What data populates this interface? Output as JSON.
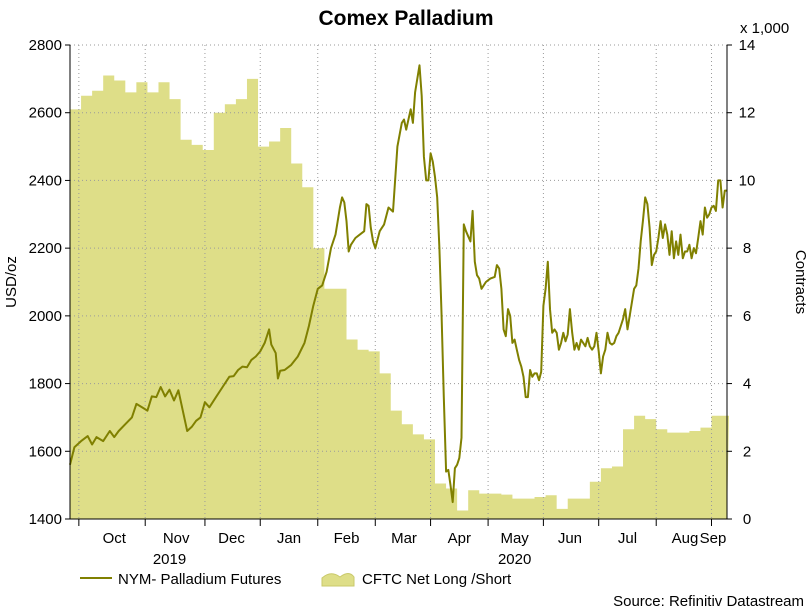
{
  "chart_data": {
    "type": "line",
    "title": "Comex Palladium",
    "ylabel_left": "USD/oz",
    "ylabel_right": "Contracts",
    "right_multiplier": "x 1,000",
    "ylim_left": [
      1400,
      2800
    ],
    "ylim_right": [
      0,
      14
    ],
    "yticks_left": [
      "1400",
      "1600",
      "1800",
      "2000",
      "2200",
      "2400",
      "2600",
      "2800"
    ],
    "yticks_right": [
      "0",
      "2",
      "4",
      "6",
      "8",
      "10",
      "12",
      "14"
    ],
    "month_labels": [
      "Oct",
      "Nov",
      "Dec",
      "Jan",
      "Feb",
      "Mar",
      "Apr",
      "May",
      "Jun",
      "Jul",
      "Aug",
      "Sep"
    ],
    "year_labels": [
      "2019",
      "2020"
    ],
    "grid": true,
    "source": "Source: Refinitiv Datastream",
    "series": [
      {
        "name": "NYM- Palladium Futures",
        "axis": "left",
        "style": "line",
        "color": "#808000",
        "points": [
          [
            0,
            1560
          ],
          [
            2,
            1612
          ],
          [
            5,
            1630
          ],
          [
            8,
            1645
          ],
          [
            10,
            1620
          ],
          [
            12,
            1642
          ],
          [
            15,
            1630
          ],
          [
            18,
            1660
          ],
          [
            20,
            1642
          ],
          [
            22,
            1660
          ],
          [
            25,
            1680
          ],
          [
            28,
            1700
          ],
          [
            30,
            1740
          ],
          [
            33,
            1728
          ],
          [
            35,
            1720
          ],
          [
            37,
            1762
          ],
          [
            39,
            1760
          ],
          [
            41,
            1790
          ],
          [
            43,
            1762
          ],
          [
            45,
            1782
          ],
          [
            47,
            1750
          ],
          [
            49,
            1780
          ],
          [
            51,
            1720
          ],
          [
            53,
            1660
          ],
          [
            55,
            1672
          ],
          [
            57,
            1690
          ],
          [
            59,
            1700
          ],
          [
            61,
            1745
          ],
          [
            63,
            1730
          ],
          [
            66,
            1760
          ],
          [
            69,
            1790
          ],
          [
            72,
            1820
          ],
          [
            74,
            1822
          ],
          [
            76,
            1840
          ],
          [
            78,
            1850
          ],
          [
            80,
            1848
          ],
          [
            82,
            1870
          ],
          [
            84,
            1880
          ],
          [
            86,
            1895
          ],
          [
            88,
            1920
          ],
          [
            90,
            1960
          ],
          [
            91,
            1915
          ],
          [
            93,
            1890
          ],
          [
            94,
            1815
          ],
          [
            95,
            1838
          ],
          [
            97,
            1840
          ],
          [
            100,
            1855
          ],
          [
            103,
            1880
          ],
          [
            106,
            1920
          ],
          [
            108,
            1970
          ],
          [
            110,
            2030
          ],
          [
            112,
            2080
          ],
          [
            114,
            2090
          ],
          [
            116,
            2130
          ],
          [
            118,
            2200
          ],
          [
            120,
            2240
          ],
          [
            121,
            2280
          ],
          [
            122,
            2320
          ],
          [
            123,
            2350
          ],
          [
            124,
            2335
          ],
          [
            125,
            2280
          ],
          [
            126,
            2190
          ],
          [
            127,
            2210
          ],
          [
            129,
            2230
          ],
          [
            131,
            2240
          ],
          [
            133,
            2250
          ],
          [
            134,
            2330
          ],
          [
            135,
            2325
          ],
          [
            136,
            2260
          ],
          [
            137,
            2220
          ],
          [
            138,
            2200
          ],
          [
            140,
            2250
          ],
          [
            142,
            2270
          ],
          [
            144,
            2320
          ],
          [
            146,
            2308
          ],
          [
            148,
            2500
          ],
          [
            150,
            2570
          ],
          [
            151,
            2580
          ],
          [
            152,
            2550
          ],
          [
            154,
            2610
          ],
          [
            155,
            2570
          ],
          [
            156,
            2660
          ],
          [
            158,
            2740
          ],
          [
            159,
            2650
          ],
          [
            160,
            2470
          ],
          [
            161,
            2400
          ],
          [
            162,
            2400
          ],
          [
            163,
            2480
          ],
          [
            164,
            2455
          ],
          [
            165,
            2410
          ],
          [
            166,
            2350
          ],
          [
            167,
            2200
          ],
          [
            168,
            2000
          ],
          [
            169,
            1760
          ],
          [
            170,
            1540
          ],
          [
            171,
            1545
          ],
          [
            172,
            1500
          ],
          [
            173,
            1450
          ],
          [
            174,
            1550
          ],
          [
            175,
            1560
          ],
          [
            176,
            1580
          ],
          [
            177,
            1640
          ],
          [
            178,
            2270
          ],
          [
            179,
            2250
          ],
          [
            180,
            2235
          ],
          [
            181,
            2220
          ],
          [
            182,
            2310
          ],
          [
            183,
            2160
          ],
          [
            184,
            2120
          ],
          [
            185,
            2110
          ],
          [
            186,
            2080
          ],
          [
            188,
            2100
          ],
          [
            190,
            2110
          ],
          [
            192,
            2115
          ],
          [
            193,
            2150
          ],
          [
            194,
            2140
          ],
          [
            195,
            2080
          ],
          [
            196,
            1960
          ],
          [
            197,
            1940
          ],
          [
            198,
            2020
          ],
          [
            199,
            2000
          ],
          [
            200,
            1920
          ],
          [
            201,
            1930
          ],
          [
            202,
            1900
          ],
          [
            203,
            1870
          ],
          [
            204,
            1850
          ],
          [
            205,
            1820
          ],
          [
            206,
            1760
          ],
          [
            207,
            1760
          ],
          [
            208,
            1840
          ],
          [
            209,
            1820
          ],
          [
            210,
            1830
          ],
          [
            211,
            1830
          ],
          [
            212,
            1810
          ],
          [
            213,
            1835
          ],
          [
            214,
            2030
          ],
          [
            215,
            2080
          ],
          [
            216,
            2160
          ],
          [
            217,
            2020
          ],
          [
            218,
            1950
          ],
          [
            219,
            1960
          ],
          [
            220,
            1950
          ],
          [
            221,
            1900
          ],
          [
            222,
            1920
          ],
          [
            223,
            1950
          ],
          [
            224,
            1925
          ],
          [
            225,
            1945
          ],
          [
            226,
            2020
          ],
          [
            227,
            1950
          ],
          [
            228,
            1900
          ],
          [
            229,
            1920
          ],
          [
            230,
            1900
          ],
          [
            231,
            1930
          ],
          [
            232,
            1920
          ],
          [
            233,
            1910
          ],
          [
            234,
            1935
          ],
          [
            235,
            1910
          ],
          [
            236,
            1900
          ],
          [
            237,
            1910
          ],
          [
            238,
            1950
          ],
          [
            239,
            1895
          ],
          [
            240,
            1830
          ],
          [
            241,
            1880
          ],
          [
            242,
            1900
          ],
          [
            243,
            1950
          ],
          [
            244,
            1920
          ],
          [
            245,
            1915
          ],
          [
            246,
            1920
          ],
          [
            247,
            1940
          ],
          [
            248,
            1950
          ],
          [
            249,
            1970
          ],
          [
            250,
            1990
          ],
          [
            251,
            2020
          ],
          [
            252,
            1960
          ],
          [
            253,
            2000
          ],
          [
            254,
            2040
          ],
          [
            255,
            2080
          ],
          [
            256,
            2090
          ],
          [
            257,
            2140
          ],
          [
            258,
            2220
          ],
          [
            259,
            2280
          ],
          [
            260,
            2350
          ],
          [
            261,
            2330
          ],
          [
            262,
            2260
          ],
          [
            263,
            2150
          ],
          [
            264,
            2180
          ],
          [
            265,
            2190
          ],
          [
            266,
            2230
          ],
          [
            267,
            2280
          ],
          [
            268,
            2230
          ],
          [
            269,
            2270
          ],
          [
            270,
            2240
          ],
          [
            271,
            2180
          ],
          [
            272,
            2250
          ],
          [
            273,
            2170
          ],
          [
            274,
            2220
          ],
          [
            275,
            2180
          ],
          [
            276,
            2240
          ],
          [
            277,
            2170
          ],
          [
            278,
            2190
          ],
          [
            279,
            2190
          ],
          [
            280,
            2210
          ],
          [
            281,
            2170
          ],
          [
            282,
            2200
          ],
          [
            283,
            2185
          ],
          [
            284,
            2230
          ],
          [
            285,
            2280
          ],
          [
            286,
            2240
          ],
          [
            287,
            2320
          ],
          [
            288,
            2290
          ],
          [
            289,
            2300
          ],
          [
            290,
            2320
          ],
          [
            291,
            2325
          ],
          [
            292,
            2310
          ],
          [
            293,
            2400
          ],
          [
            294,
            2400
          ],
          [
            295,
            2320
          ],
          [
            296,
            2370
          ],
          [
            297,
            2370
          ]
        ]
      },
      {
        "name": "CFTC Net Long /Short",
        "axis": "right",
        "style": "area",
        "color": "#dede88",
        "steps": [
          [
            0,
            12.1
          ],
          [
            5,
            12.5
          ],
          [
            10,
            12.65
          ],
          [
            15,
            13.1
          ],
          [
            20,
            12.95
          ],
          [
            25,
            12.6
          ],
          [
            30,
            12.9
          ],
          [
            35,
            12.6
          ],
          [
            40,
            12.9
          ],
          [
            45,
            12.4
          ],
          [
            50,
            11.2
          ],
          [
            55,
            11.05
          ],
          [
            60,
            10.9
          ],
          [
            65,
            12.0
          ],
          [
            70,
            12.25
          ],
          [
            75,
            12.4
          ],
          [
            80,
            13.0
          ],
          [
            85,
            11.0
          ],
          [
            90,
            11.15
          ],
          [
            95,
            11.55
          ],
          [
            100,
            10.5
          ],
          [
            105,
            9.8
          ],
          [
            110,
            8.0
          ],
          [
            115,
            6.8
          ],
          [
            120,
            6.8
          ],
          [
            125,
            5.3
          ],
          [
            130,
            5.0
          ],
          [
            135,
            4.95
          ],
          [
            140,
            4.3
          ],
          [
            145,
            3.2
          ],
          [
            150,
            2.8
          ],
          [
            155,
            2.5
          ],
          [
            160,
            2.35
          ],
          [
            165,
            1.05
          ],
          [
            170,
            0.9
          ],
          [
            175,
            0.25
          ],
          [
            180,
            0.85
          ],
          [
            185,
            0.75
          ],
          [
            190,
            0.75
          ],
          [
            195,
            0.72
          ],
          [
            200,
            0.6
          ],
          [
            205,
            0.6
          ],
          [
            210,
            0.65
          ],
          [
            215,
            0.7
          ],
          [
            220,
            0.3
          ],
          [
            225,
            0.6
          ],
          [
            230,
            0.6
          ],
          [
            235,
            1.1
          ],
          [
            240,
            1.5
          ],
          [
            245,
            1.55
          ],
          [
            250,
            2.65
          ],
          [
            255,
            3.05
          ],
          [
            260,
            2.95
          ],
          [
            265,
            2.65
          ],
          [
            270,
            2.55
          ],
          [
            275,
            2.55
          ],
          [
            280,
            2.6
          ],
          [
            285,
            2.7
          ],
          [
            290,
            3.05
          ],
          [
            297,
            3.05
          ]
        ]
      }
    ]
  }
}
